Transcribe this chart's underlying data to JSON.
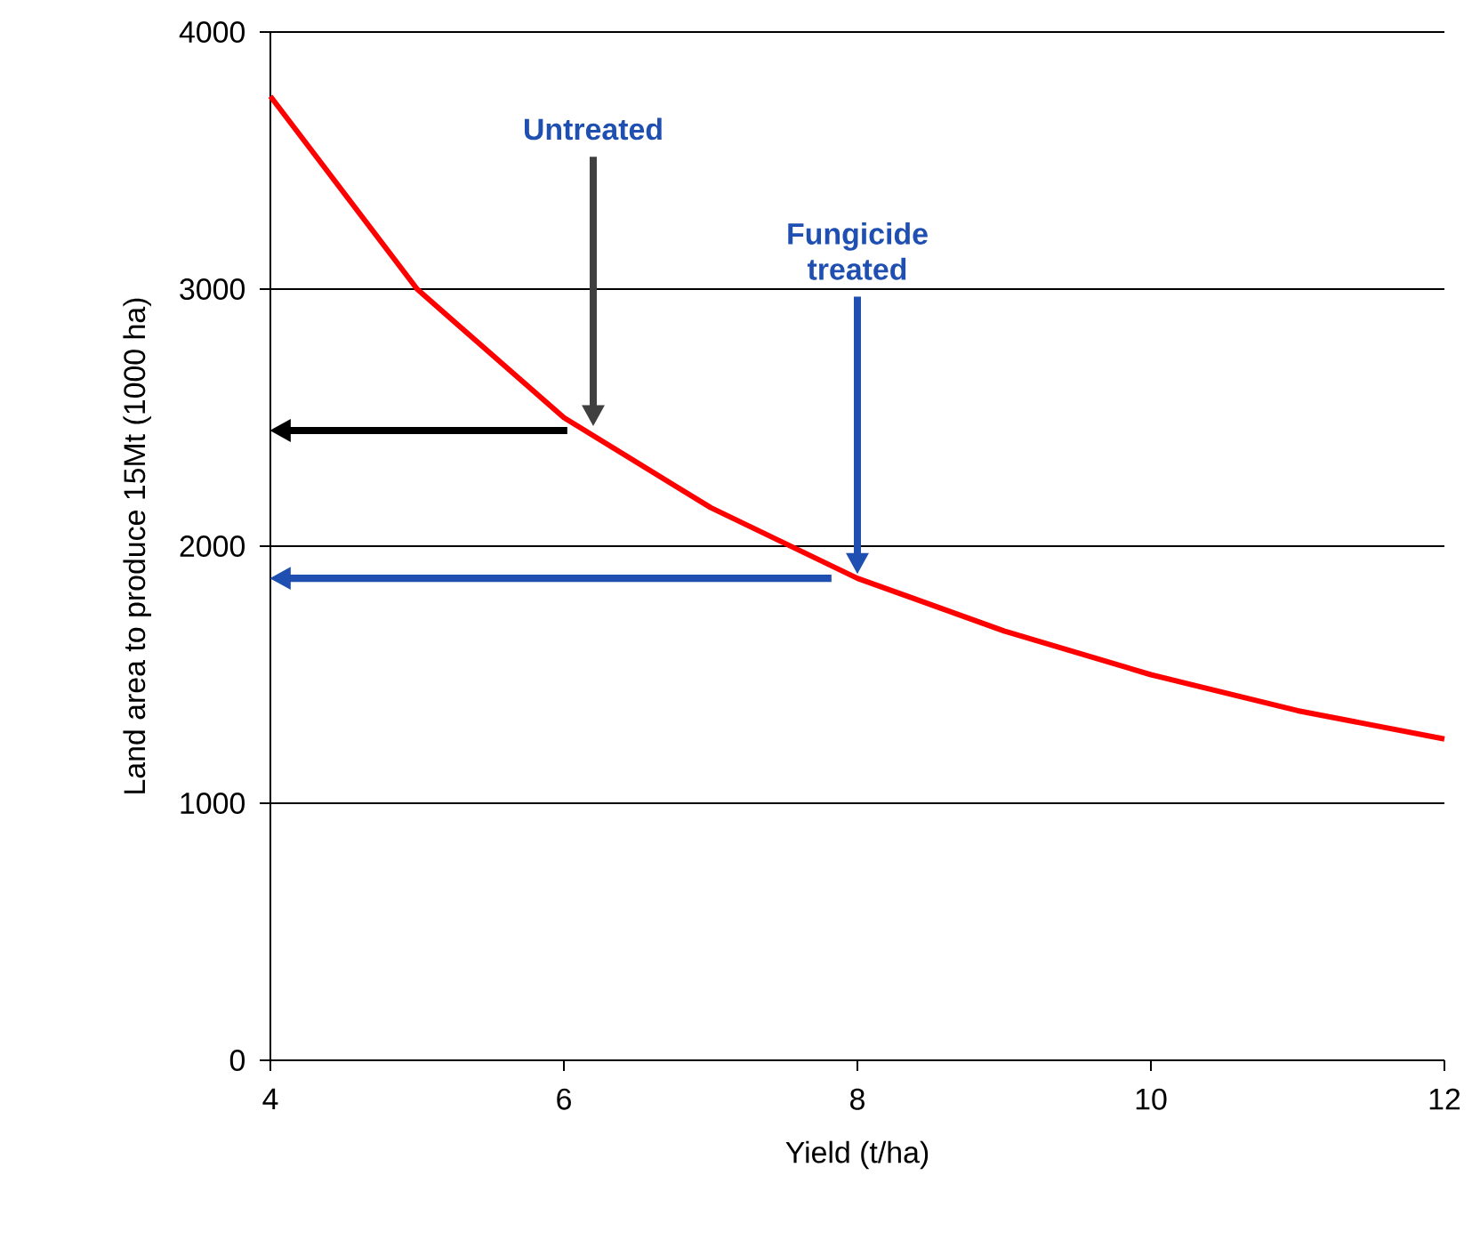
{
  "chart_data": {
    "type": "line",
    "xlabel": "Yield (t/ha)",
    "ylabel": "Land area to produce 15Mt (1000 ha)",
    "x": [
      4,
      5,
      6,
      7,
      8,
      9,
      10,
      11,
      12
    ],
    "series": [
      {
        "color": "#ff0000",
        "values": [
          3750,
          3000,
          2500,
          2150,
          1875,
          1670,
          1500,
          1360,
          1250
        ]
      }
    ],
    "xlim": [
      4,
      12
    ],
    "xticks": [
      4,
      6,
      8,
      10,
      12
    ],
    "ylim": [
      0,
      4000
    ],
    "yticks": [
      0,
      1000,
      2000,
      3000,
      4000
    ],
    "grid": "y",
    "marker": "none",
    "line_style": "solid",
    "annotations": [
      "Untreated",
      "Fungicide treated"
    ]
  }
}
